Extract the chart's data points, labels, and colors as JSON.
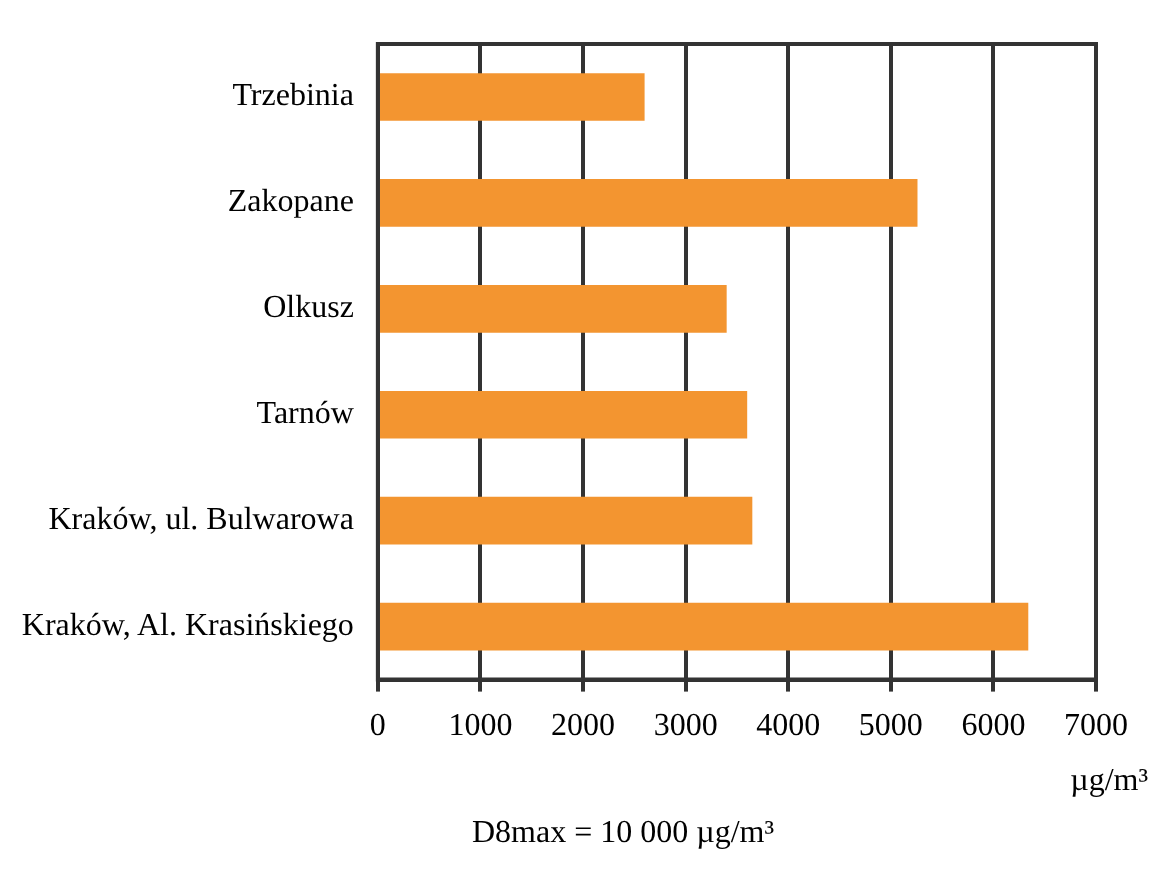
{
  "chart_data": {
    "type": "bar",
    "orientation": "horizontal",
    "categories": [
      "Trzebinia",
      "Zakopane",
      "Olkusz",
      "Tarnów",
      "Kraków, ul. Bulwarowa",
      "Kraków, Al. Krasińskiego"
    ],
    "values": [
      2600,
      5260,
      3400,
      3600,
      3650,
      6340
    ],
    "color": "#f39530",
    "xlim": [
      0,
      7000
    ],
    "xticks": [
      0,
      1000,
      2000,
      3000,
      4000,
      5000,
      6000,
      7000
    ],
    "grid": "x",
    "xlabel": "µg/m³",
    "annotations": [
      "D8max  = 10 000 µg/m³"
    ]
  }
}
